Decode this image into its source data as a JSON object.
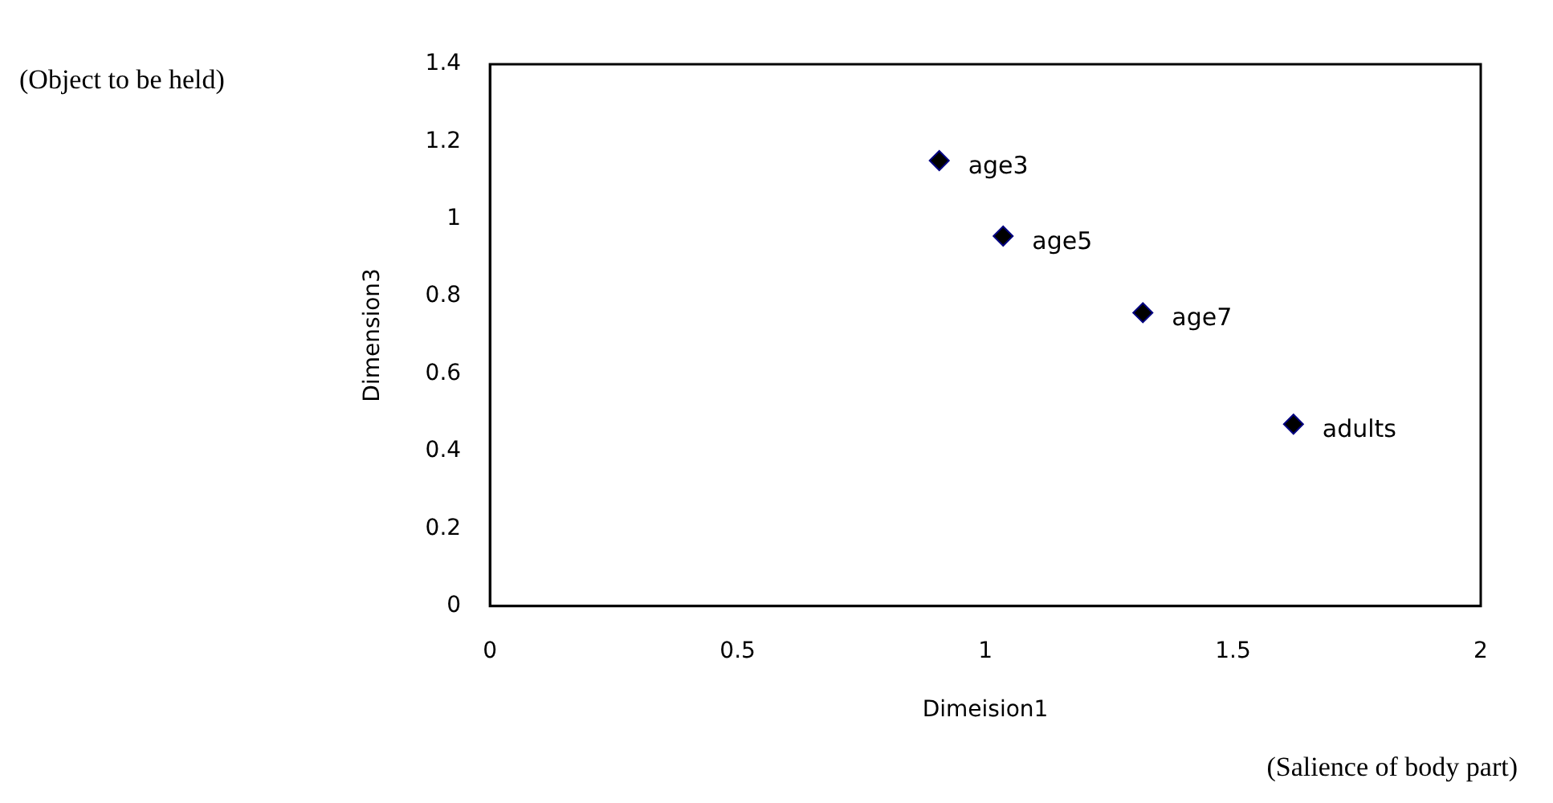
{
  "chart_data": {
    "type": "scatter",
    "xlabel": "Dimeision1",
    "ylabel": "Dimension3",
    "x": [
      0.907,
      1.036,
      1.318,
      1.622
    ],
    "series": [
      {
        "color": "#000080",
        "values": [
          1.151,
          0.956,
          0.758,
          0.47
        ]
      }
    ],
    "xlim": [
      0,
      2
    ],
    "xticks": [
      0,
      0.5,
      1,
      1.5,
      2
    ],
    "ylim": [
      0,
      1.4
    ],
    "yticks": [
      0,
      0.2,
      0.4,
      0.6,
      0.8,
      1,
      1.2,
      1.4
    ],
    "grid": false,
    "legend": false,
    "marker": "diamond",
    "annotations": [
      {
        "text": "age3",
        "x": 0.907,
        "y": 1.151
      },
      {
        "text": "age5",
        "x": 1.036,
        "y": 0.956
      },
      {
        "text": "age7",
        "x": 1.318,
        "y": 0.758
      },
      {
        "text": "adults",
        "x": 1.622,
        "y": 0.47
      },
      "(Object to be held)",
      "(Salience of body part)"
    ]
  }
}
